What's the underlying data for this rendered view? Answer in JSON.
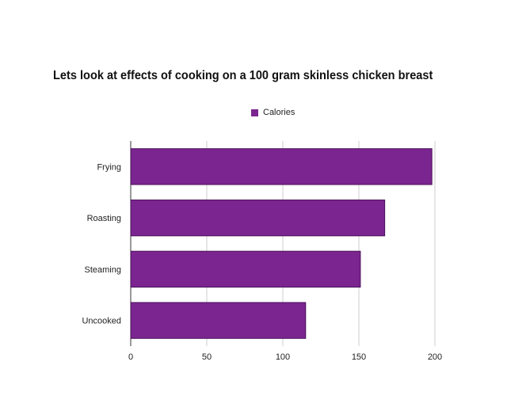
{
  "chart_data": {
    "type": "bar",
    "orientation": "horizontal",
    "title": "Lets look at effects of cooking on a 100 gram skinless chicken breast",
    "categories": [
      "Frying",
      "Roasting",
      "Steaming",
      "Uncooked"
    ],
    "series": [
      {
        "name": "Calories",
        "values": [
          198,
          167,
          151,
          115
        ]
      }
    ],
    "xlim": [
      0,
      200
    ],
    "xticks": [
      0,
      50,
      100,
      150,
      200
    ],
    "xlabel": "",
    "ylabel": "",
    "grid": true,
    "legend": "top-center",
    "bar_color": "#7b2590",
    "bar_edge_color": "#4a1258"
  }
}
